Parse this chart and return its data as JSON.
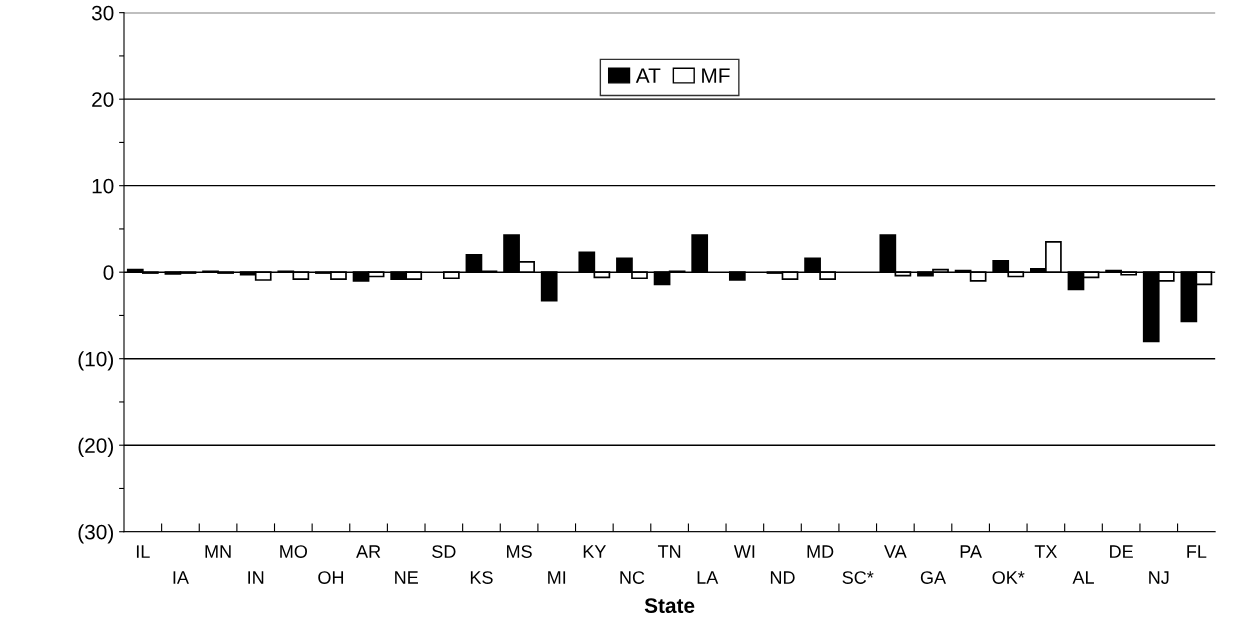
{
  "chart_data": {
    "type": "bar",
    "xlabel": "State",
    "categories": [
      "IL",
      "IA",
      "MN",
      "IN",
      "MO",
      "OH",
      "AR",
      "NE",
      "SD",
      "KS",
      "MS",
      "MI",
      "KY",
      "NC",
      "TN",
      "LA",
      "WI",
      "ND",
      "MD",
      "SC*",
      "VA",
      "GA",
      "PA",
      "OK*",
      "TX",
      "AL",
      "DE",
      "NJ",
      "FL"
    ],
    "series": [
      {
        "name": "AT",
        "color": "#000000",
        "values": [
          0.3,
          -0.2,
          0.1,
          -0.3,
          0.1,
          -0.1,
          -1.0,
          -0.8,
          0.0,
          2.0,
          4.3,
          -3.3,
          2.3,
          1.6,
          -1.4,
          4.3,
          -0.9,
          -0.1,
          1.6,
          0.0,
          4.3,
          -0.4,
          0.2,
          1.3,
          0.4,
          -2.0,
          0.2,
          -8.0,
          -5.7
        ]
      },
      {
        "name": "MF",
        "color": "#ffffff",
        "values": [
          -0.1,
          -0.1,
          -0.1,
          -0.9,
          -0.8,
          -0.8,
          -0.5,
          -0.8,
          -0.7,
          0.1,
          1.2,
          0.0,
          -0.6,
          -0.7,
          0.1,
          0.0,
          0.0,
          -0.8,
          -0.8,
          0.0,
          -0.4,
          0.3,
          -1.0,
          -0.5,
          3.5,
          -0.6,
          -0.3,
          -1.0,
          -1.4
        ]
      }
    ],
    "ylim": [
      -30,
      30
    ],
    "yticks": [
      {
        "value": -30,
        "label": "(30)"
      },
      {
        "value": -25,
        "label": null
      },
      {
        "value": -20,
        "label": "(20)"
      },
      {
        "value": -15,
        "label": null
      },
      {
        "value": -10,
        "label": "(10)"
      },
      {
        "value": -5,
        "label": null
      },
      0,
      {
        "value": 5,
        "label": null
      },
      10,
      {
        "value": 15,
        "label": null
      },
      20,
      {
        "value": 25,
        "label": null
      },
      30
    ],
    "grid": "y",
    "legend": "top"
  }
}
